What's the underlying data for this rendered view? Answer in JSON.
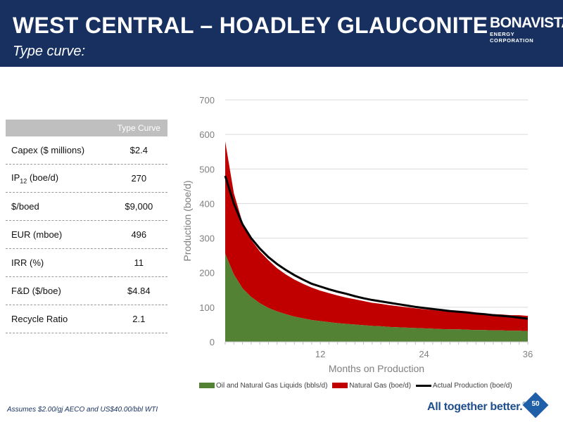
{
  "header": {
    "title": "WEST CENTRAL – HOADLEY GLAUCONITE",
    "subtitle": "Type curve:",
    "logo_name": "BONAVISTA",
    "logo_sub": "ENERGY CORPORATION"
  },
  "table": {
    "column_header": "Type Curve",
    "rows": [
      {
        "label": "Capex ($ millions)",
        "value": "$2.4"
      },
      {
        "label_main": "IP",
        "label_sub": "12",
        "label_rest": " (boe/d)",
        "value": "270"
      },
      {
        "label": "$/boed",
        "value": "$9,000"
      },
      {
        "label": "EUR (mboe)",
        "value": "496"
      },
      {
        "label": "IRR (%)",
        "value": "11"
      },
      {
        "label": "F&D ($/boe)",
        "value": "$4.84"
      },
      {
        "label": "Recycle Ratio",
        "value": "2.1"
      }
    ]
  },
  "chart_data": {
    "type": "area",
    "xlabel": "Months on Production",
    "ylabel": "Production (boe/d)",
    "xlim": [
      1,
      36
    ],
    "ylim": [
      0,
      700
    ],
    "x_ticks": [
      12,
      24,
      36
    ],
    "y_ticks": [
      0,
      100,
      200,
      300,
      400,
      500,
      600,
      700
    ],
    "grid": "horizontal",
    "legend": "bottom",
    "x": [
      1,
      2,
      3,
      4,
      5,
      6,
      7,
      8,
      9,
      10,
      11,
      12,
      13,
      14,
      15,
      16,
      17,
      18,
      19,
      20,
      21,
      22,
      23,
      24,
      25,
      26,
      27,
      28,
      29,
      30,
      31,
      32,
      33,
      34,
      35,
      36
    ],
    "series": [
      {
        "name": "Oil and Natural Gas Liquids (bbls/d)",
        "kind": "stacked-area",
        "color": "#548235",
        "values": [
          255,
          195,
          155,
          130,
          112,
          98,
          88,
          80,
          73,
          68,
          63,
          60,
          57,
          54,
          52,
          50,
          48,
          46,
          45,
          43,
          42,
          41,
          40,
          39,
          38,
          37,
          36,
          36,
          35,
          34,
          34,
          33,
          33,
          32,
          32,
          31
        ]
      },
      {
        "name": "Natural Gas (boe/d)",
        "kind": "stacked-area",
        "color": "#c00000",
        "values": [
          325,
          235,
          190,
          165,
          150,
          138,
          125,
          115,
          107,
          100,
          94,
          88,
          84,
          80,
          76,
          73,
          70,
          67,
          65,
          63,
          61,
          59,
          57,
          55,
          54,
          52,
          51,
          50,
          49,
          48,
          47,
          47,
          46,
          45,
          45,
          44
        ]
      },
      {
        "name": "Actual Production (boe/d)",
        "kind": "line",
        "color": "#000000",
        "values": [
          480,
          400,
          340,
          300,
          270,
          245,
          225,
          208,
          193,
          180,
          168,
          160,
          152,
          145,
          139,
          132,
          126,
          121,
          117,
          113,
          109,
          105,
          101,
          98,
          95,
          92,
          89,
          87,
          85,
          82,
          80,
          77,
          75,
          73,
          70,
          67
        ]
      }
    ]
  },
  "footer": {
    "footnote": "Assumes $2.00/gj AECO and US$40.00/bbl WTI",
    "tagline": "All together better.",
    "tagline_mark": "®",
    "page_number": "50"
  }
}
